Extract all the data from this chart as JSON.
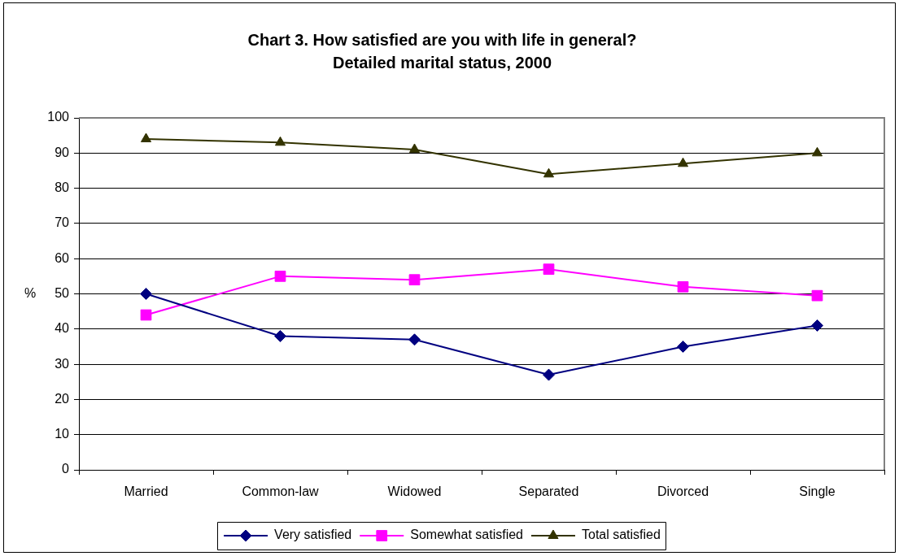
{
  "chart_data": {
    "type": "line",
    "title": "Chart 3. How satisfied are you with life in general?",
    "subtitle": "Detailed marital status, 2000",
    "ylabel": "%",
    "categories": [
      "Married",
      "Common-law",
      "Widowed",
      "Separated",
      "Divorced",
      "Single"
    ],
    "series": [
      {
        "name": "Very satisfied",
        "color": "#000080",
        "marker": "diamond",
        "values": [
          50,
          38,
          37,
          27,
          35,
          41
        ]
      },
      {
        "name": "Somewhat satisfied",
        "color": "#ff00ff",
        "marker": "square",
        "values": [
          44,
          55,
          54,
          57,
          52,
          49.5
        ]
      },
      {
        "name": "Total satisfied",
        "color": "#333300",
        "marker": "triangle",
        "values": [
          94,
          93,
          91,
          84,
          87,
          90
        ]
      }
    ],
    "ylim": [
      0,
      100
    ],
    "yticks": [
      0,
      10,
      20,
      30,
      40,
      50,
      60,
      70,
      80,
      90,
      100
    ],
    "grid": "y",
    "legend": "bottom",
    "line_style": "solid"
  }
}
